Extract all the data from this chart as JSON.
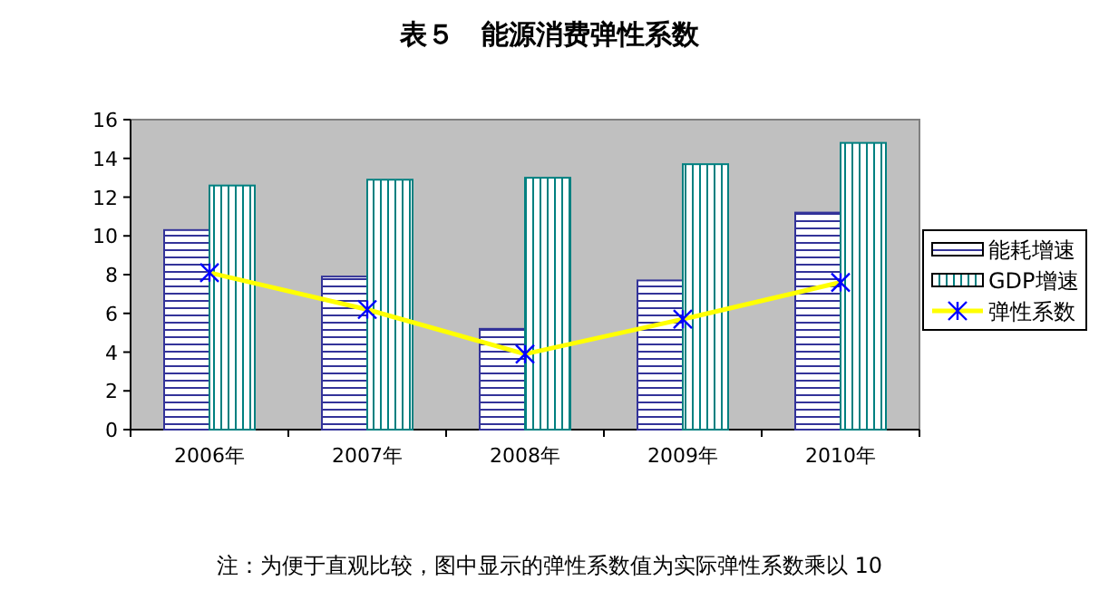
{
  "chart_data": {
    "type": "bar",
    "title": "表５　能源消费弹性系数",
    "categories": [
      "2006年",
      "2007年",
      "2008年",
      "2009年",
      "2010年"
    ],
    "series": [
      {
        "name": "能耗增速",
        "color": "#333399",
        "values": [
          10.3,
          7.9,
          5.2,
          7.7,
          11.2
        ]
      },
      {
        "name": "GDP增速",
        "color": "#008080",
        "values": [
          12.6,
          12.9,
          13.0,
          13.7,
          14.8
        ]
      },
      {
        "name": "弹性系数",
        "type": "line",
        "color": "#ffff00",
        "marker": "cross",
        "values": [
          8.1,
          6.2,
          3.9,
          5.7,
          7.6
        ]
      }
    ],
    "ylim": [
      0,
      16
    ],
    "yticks": [
      0,
      2,
      4,
      6,
      8,
      10,
      12,
      14,
      16
    ],
    "grid": false,
    "legend": "right",
    "annotations": [
      "注：为便于直观比较，图中显示的弹性系数值为实际弹性系数乘以 10"
    ]
  }
}
